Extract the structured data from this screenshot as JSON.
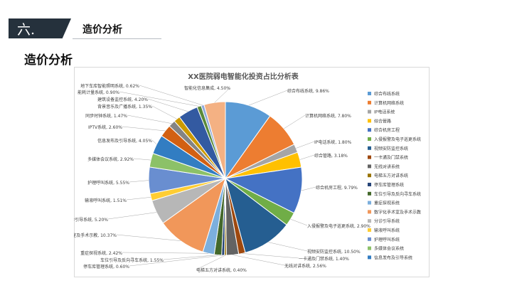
{
  "header": {
    "number": "六.",
    "title": "造价分析"
  },
  "page_title": "造价分析",
  "chart_data": {
    "type": "pie",
    "title": "XX医院弱电智能化投资占比分析表",
    "legend_position": "right",
    "slices": [
      {
        "name": "综合布线系统",
        "value": 9.86,
        "label": "综合布线系统, 9.86%",
        "color": "#5b9bd5"
      },
      {
        "name": "计算机网络系统",
        "value": 7.8,
        "label": "计算机网络系统, 7.80%",
        "color": "#ed7d31"
      },
      {
        "name": "IP电话系统",
        "value": 1.8,
        "label": "IP电话系统, 1.80%",
        "color": "#a5a5a5"
      },
      {
        "name": "综合管路",
        "value": 3.18,
        "label": "综合管路, 3.18%",
        "color": "#ffc000"
      },
      {
        "name": "综合机房工程",
        "value": 9.79,
        "label": "综合机房工程, 9.79%",
        "color": "#4472c4"
      },
      {
        "name": "入侵报警及电子巡更系统",
        "value": 2.9,
        "label": "入侵报警及电子巡更系统, 2.90%",
        "color": "#70ad47"
      },
      {
        "name": "视频安防监控系统",
        "value": 10.5,
        "label": "视频安防监控系统, 10.50%",
        "color": "#255e91"
      },
      {
        "name": "一卡通及门禁系统",
        "value": 1.4,
        "label": "一卡通及门禁系统, 1.40%",
        "color": "#9e480e"
      },
      {
        "name": "无线对讲系统",
        "value": 2.56,
        "label": "无线对讲系统, 2.56%",
        "color": "#636363"
      },
      {
        "name": "电梯五方对讲系统",
        "value": 0.4,
        "label": "电梯五方对讲系统, 0.40%",
        "color": "#997300"
      },
      {
        "name": "停车库管理系统",
        "value": 0.6,
        "label": "停车库管理系统, 0.60%",
        "color": "#264478"
      },
      {
        "name": "车位引导及反向寻车系统",
        "value": 1.55,
        "label": "车位引导及反向寻车系统, 1.55%",
        "color": "#43682b"
      },
      {
        "name": "重症探视系统",
        "value": 2.42,
        "label": "重症探视系统, 2.42%",
        "color": "#7cafdd"
      },
      {
        "name": "数字化手术室及手术示教",
        "value": 10.37,
        "label": "数字化手术室及手术示教, 10.37%",
        "color": "#f1975a"
      },
      {
        "name": "分诊引导系统",
        "value": 5.2,
        "label": "分诊引导系统, 5.20%",
        "color": "#b7b7b7"
      },
      {
        "name": "输液呼叫系统",
        "value": 1.51,
        "label": "输液呼叫系统, 1.51%",
        "color": "#ffcd33"
      },
      {
        "name": "护理呼叫系统",
        "value": 5.55,
        "label": "护理呼叫系统, 5.55%",
        "color": "#698ed0"
      },
      {
        "name": "多媒体会议系统",
        "value": 2.92,
        "label": "多媒体会议系统, 2.92%",
        "color": "#8cc168"
      },
      {
        "name": "信息发布及引导系统",
        "value": 4.05,
        "label": "信息发布及引导系统, 4.05%",
        "color": "#327dc2"
      },
      {
        "name": "IPTV系统",
        "value": 2.6,
        "label": "IPTV系统, 2.60%",
        "color": "#d26012"
      },
      {
        "name": "同步时钟系统",
        "value": 1.47,
        "label": "同步时钟系统, 1.47%",
        "color": "#848484"
      },
      {
        "name": "背景音乐及广播系统",
        "value": 1.35,
        "label": "背景音乐及广播系统, 1.35%",
        "color": "#cc9a00"
      },
      {
        "name": "建筑设备监控系统",
        "value": 4.2,
        "label": "建筑设备监控系统, 4.20%",
        "color": "#335aa1"
      },
      {
        "name": "能耗计量系统",
        "value": 0.9,
        "label": "能耗计量系统, 0.90%",
        "color": "#5a8a39"
      },
      {
        "name": "地下车库智能照明系统",
        "value": 0.62,
        "label": "地下车库智能照明系统, 0.62%",
        "color": "#8faadc"
      },
      {
        "name": "智能化信息集成",
        "value": 4.5,
        "label": "智能化信息集成, 4.50%",
        "color": "#f4b183"
      }
    ],
    "legend": [
      "综合布线系统",
      "计算机网络系统",
      "IP电话系统",
      "综合管路",
      "综合机房工程",
      "入侵报警及电子巡更系统",
      "视频安防监控系统",
      "一卡通及门禁系统",
      "无线对讲系统",
      "电梯五方对讲系统",
      "停车库管理系统",
      "车位引导及反向寻车系统",
      "重症探视系统",
      "数字化手术室及手术示教",
      "分诊引导系统",
      "输液呼叫系统",
      "护理呼叫系统",
      "多媒体会议系统",
      "信息发布及引导系统"
    ]
  }
}
